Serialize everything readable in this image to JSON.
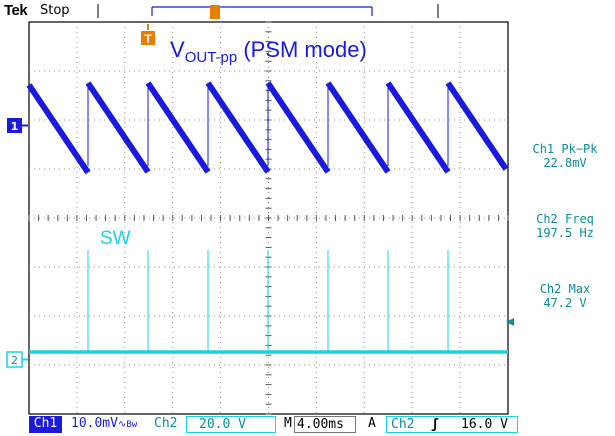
{
  "topbar": {
    "brand": "Tek",
    "run_state": "Stop"
  },
  "screen": {
    "signal_label": {
      "main": "V",
      "subscript": "OUT-pp",
      "suffix": " (PSM mode)"
    },
    "sw_label": "SW",
    "trigger_position_marker": "T",
    "channel_markers": {
      "ch1": "1",
      "ch2": "2"
    }
  },
  "measurements": [
    {
      "label": "Ch1 Pk−Pk",
      "value": "22.8mV"
    },
    {
      "label": "Ch2 Freq",
      "value": "197.5 Hz"
    },
    {
      "label": "Ch2 Max",
      "value": "47.2 V"
    }
  ],
  "bottombar": {
    "ch1_label": "Ch1",
    "ch1_scale": "10.0mV",
    "ch1_coupling_glyph": "∿",
    "ch1_bw": "Bw",
    "ch2_label": "Ch2",
    "ch2_scale": "20.0 V",
    "m_label": "M",
    "timebase": "4.00ms",
    "a_label": "A",
    "trig_source": "Ch2",
    "trig_slope": "ʃ",
    "trig_level": "16.0 V"
  },
  "colors": {
    "ch1": "#1a1adf",
    "ch2": "#19d2e6",
    "measure": "#0b8c9a",
    "trigger_marker": "#e67e00",
    "grid": "#8f8f8f"
  }
}
